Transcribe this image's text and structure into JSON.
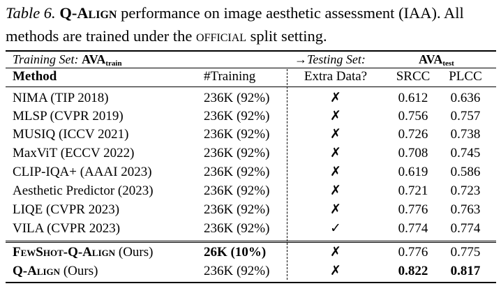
{
  "caption": {
    "label": "Table 6.",
    "name": "Q-Align",
    "text_1": "performance on image aesthetic assessment (IAA). All methods are trained under the",
    "split": "official",
    "text_2": "split setting."
  },
  "header": {
    "training_set_label": "Training Set:",
    "training_set_name": "AVA",
    "training_set_sub": "train",
    "testing_set_label": "→Testing Set:",
    "testing_set_name": "AVA",
    "testing_set_sub": "test"
  },
  "columns": [
    "Method",
    "#Training",
    "Extra Data?",
    "SRCC",
    "PLCC"
  ],
  "rows": [
    {
      "method": "NIMA (TIP 2018)",
      "training": "236K (92%)",
      "extra": "✗",
      "srcc": "0.612",
      "plcc": "0.636"
    },
    {
      "method": "MLSP (CVPR 2019)",
      "training": "236K (92%)",
      "extra": "✗",
      "srcc": "0.756",
      "plcc": "0.757"
    },
    {
      "method": "MUSIQ (ICCV 2021)",
      "training": "236K (92%)",
      "extra": "✗",
      "srcc": "0.726",
      "plcc": "0.738"
    },
    {
      "method": "MaxViT (ECCV 2022)",
      "training": "236K (92%)",
      "extra": "✗",
      "srcc": "0.708",
      "plcc": "0.745"
    },
    {
      "method": "CLIP-IQA+ (AAAI 2023)",
      "training": "236K (92%)",
      "extra": "✗",
      "srcc": "0.619",
      "plcc": "0.586"
    },
    {
      "method": "Aesthetic Predictor (2023)",
      "training": "236K (92%)",
      "extra": "✗",
      "srcc": "0.721",
      "plcc": "0.723"
    },
    {
      "method": "LIQE (CVPR 2023)",
      "training": "236K (92%)",
      "extra": "✗",
      "srcc": "0.776",
      "plcc": "0.763"
    },
    {
      "method": "VILA (CVPR 2023)",
      "training": "236K (92%)",
      "extra": "✓",
      "srcc": "0.774",
      "plcc": "0.774"
    }
  ],
  "ours": [
    {
      "name": "FewShot-Q-Align",
      "suffix": "(Ours)",
      "training": "26K (10%)",
      "extra": "✗",
      "srcc": "0.776",
      "plcc": "0.775"
    },
    {
      "name": "Q-Align",
      "suffix": "(Ours)",
      "training": "236K (92%)",
      "extra": "✗",
      "srcc": "0.822",
      "plcc": "0.817"
    }
  ]
}
